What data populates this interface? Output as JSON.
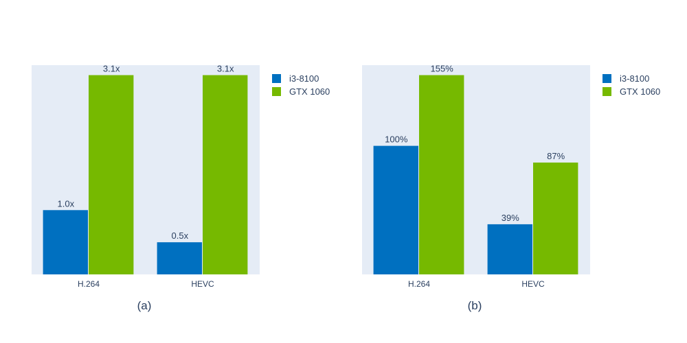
{
  "colors": {
    "plot_bg": "#e5ecf6",
    "i3": "#0070c0",
    "gtx": "#76b900",
    "text": "#2a3f5f"
  },
  "chart_data": [
    {
      "type": "bar",
      "caption": "(a)",
      "categories": [
        "H.264",
        "HEVC"
      ],
      "series": [
        {
          "name": "i3-8100",
          "values": [
            1.0,
            0.5
          ],
          "labels": [
            "1.0x",
            "0.5x"
          ]
        },
        {
          "name": "GTX 1060",
          "values": [
            3.1,
            3.1
          ],
          "labels": [
            "3.1x",
            "3.1x"
          ]
        }
      ],
      "ylim": [
        0,
        3.255
      ],
      "grid": false,
      "legend": "top-right"
    },
    {
      "type": "bar",
      "caption": "(b)",
      "categories": [
        "H.264",
        "HEVC"
      ],
      "series": [
        {
          "name": "i3-8100",
          "values": [
            100,
            39
          ],
          "labels": [
            "100%",
            "39%"
          ]
        },
        {
          "name": "GTX 1060",
          "values": [
            155,
            87
          ],
          "labels": [
            "155%",
            "87%"
          ]
        }
      ],
      "ylim": [
        0,
        162.75
      ],
      "grid": false,
      "legend": "top-right"
    }
  ]
}
